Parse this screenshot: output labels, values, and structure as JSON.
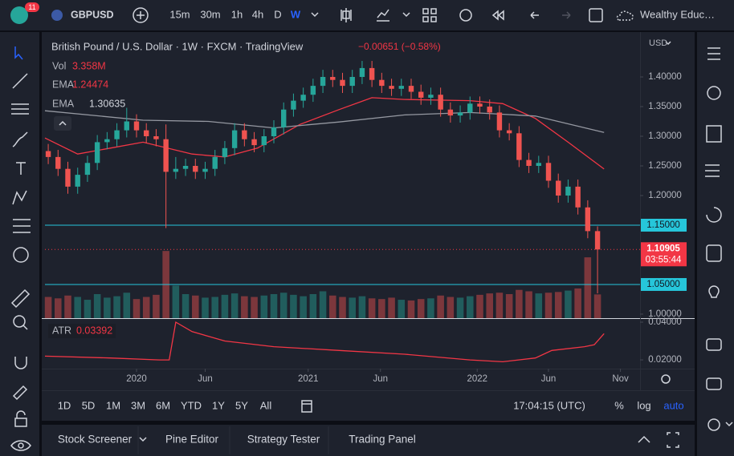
{
  "toolbar": {
    "badge": "11",
    "symbol": "GBPUSD",
    "intervals": [
      "15m",
      "30m",
      "1h",
      "4h",
      "D",
      "W"
    ],
    "account": "Wealthy Educ…"
  },
  "chart_data": {
    "type": "candlestick",
    "title": "British Pound / U.S. Dollar · 1W · FXCM · TradingView",
    "change": "−0.00651 (−0.58%)",
    "currency": "USD",
    "countdown": "03:55:44",
    "up_color": "#26a69a",
    "down_color": "#ef5350",
    "grid": false,
    "xlim": [
      0,
      182
    ],
    "ylim": [
      0.9932,
      1.4703
    ],
    "yticks": [
      {
        "value": 1.4,
        "label": "1.40000"
      },
      {
        "value": 1.35,
        "label": "1.35000"
      },
      {
        "value": 1.3,
        "label": "1.30000"
      },
      {
        "value": 1.25,
        "label": "1.25000"
      },
      {
        "value": 1.2,
        "label": "1.20000"
      },
      {
        "value": 1.0,
        "label": "1.00000"
      }
    ],
    "xticks": [
      {
        "value": 28,
        "label": "2020"
      },
      {
        "value": 49,
        "label": "Jun"
      },
      {
        "value": 80.5,
        "label": "2021"
      },
      {
        "value": 102.6,
        "label": "Jun"
      },
      {
        "value": 132.2,
        "label": "2022"
      },
      {
        "value": 154,
        "label": "Jun"
      },
      {
        "value": 176,
        "label": "Nov"
      }
    ],
    "hlines": [
      {
        "value": 1.15,
        "label": "1.15000"
      },
      {
        "value": 1.05,
        "label": "1.05000"
      }
    ],
    "hline_color": "#26c6da",
    "x": [
      1,
      4,
      7,
      10,
      13,
      16,
      19,
      22,
      25,
      28,
      31,
      34,
      37,
      40,
      43,
      46,
      49,
      52,
      55,
      58,
      61,
      64,
      67,
      70,
      73,
      76,
      79,
      82,
      85,
      88,
      91,
      94,
      97,
      100,
      103,
      106,
      109,
      112,
      115,
      118,
      121,
      124,
      127,
      130,
      133,
      136,
      139,
      142,
      145,
      148,
      151,
      154,
      157,
      160,
      163,
      166,
      169
    ],
    "candles": [
      [
        1.275,
        1.287,
        1.253,
        1.265
      ],
      [
        1.265,
        1.277,
        1.233,
        1.245
      ],
      [
        1.245,
        1.257,
        1.203,
        1.215
      ],
      [
        1.215,
        1.247,
        1.203,
        1.235
      ],
      [
        1.235,
        1.267,
        1.223,
        1.255
      ],
      [
        1.255,
        1.302,
        1.243,
        1.29
      ],
      [
        1.29,
        1.307,
        1.278,
        1.295
      ],
      [
        1.295,
        1.322,
        1.283,
        1.31
      ],
      [
        1.31,
        1.348,
        1.298,
        1.325
      ],
      [
        1.325,
        1.337,
        1.298,
        1.31
      ],
      [
        1.31,
        1.322,
        1.288,
        1.3
      ],
      [
        1.3,
        1.312,
        1.283,
        1.295
      ],
      [
        1.295,
        1.32,
        1.145,
        1.24
      ],
      [
        1.24,
        1.265,
        1.228,
        1.245
      ],
      [
        1.245,
        1.262,
        1.233,
        1.25
      ],
      [
        1.25,
        1.262,
        1.228,
        1.24
      ],
      [
        1.24,
        1.257,
        1.228,
        1.245
      ],
      [
        1.245,
        1.277,
        1.233,
        1.265
      ],
      [
        1.265,
        1.292,
        1.253,
        1.28
      ],
      [
        1.28,
        1.322,
        1.268,
        1.31
      ],
      [
        1.31,
        1.322,
        1.283,
        1.295
      ],
      [
        1.295,
        1.307,
        1.273,
        1.285
      ],
      [
        1.285,
        1.312,
        1.273,
        1.3
      ],
      [
        1.3,
        1.327,
        1.288,
        1.315
      ],
      [
        1.315,
        1.357,
        1.303,
        1.345
      ],
      [
        1.345,
        1.372,
        1.333,
        1.36
      ],
      [
        1.36,
        1.382,
        1.348,
        1.37
      ],
      [
        1.37,
        1.397,
        1.358,
        1.385
      ],
      [
        1.385,
        1.412,
        1.373,
        1.4
      ],
      [
        1.4,
        1.412,
        1.383,
        1.395
      ],
      [
        1.395,
        1.407,
        1.373,
        1.385
      ],
      [
        1.385,
        1.412,
        1.373,
        1.4
      ],
      [
        1.4,
        1.427,
        1.388,
        1.415
      ],
      [
        1.415,
        1.427,
        1.383,
        1.395
      ],
      [
        1.395,
        1.407,
        1.373,
        1.385
      ],
      [
        1.385,
        1.397,
        1.368,
        1.38
      ],
      [
        1.38,
        1.397,
        1.368,
        1.385
      ],
      [
        1.385,
        1.397,
        1.363,
        1.375
      ],
      [
        1.375,
        1.387,
        1.353,
        1.365
      ],
      [
        1.365,
        1.382,
        1.353,
        1.37
      ],
      [
        1.37,
        1.382,
        1.333,
        1.345
      ],
      [
        1.345,
        1.357,
        1.323,
        1.335
      ],
      [
        1.335,
        1.352,
        1.323,
        1.34
      ],
      [
        1.34,
        1.367,
        1.328,
        1.355
      ],
      [
        1.355,
        1.367,
        1.338,
        1.35
      ],
      [
        1.35,
        1.362,
        1.328,
        1.34
      ],
      [
        1.34,
        1.352,
        1.298,
        1.31
      ],
      [
        1.31,
        1.322,
        1.293,
        1.305
      ],
      [
        1.305,
        1.317,
        1.248,
        1.26
      ],
      [
        1.26,
        1.272,
        1.238,
        1.25
      ],
      [
        1.25,
        1.267,
        1.238,
        1.255
      ],
      [
        1.255,
        1.267,
        1.213,
        1.225
      ],
      [
        1.225,
        1.237,
        1.188,
        1.2
      ],
      [
        1.2,
        1.227,
        1.188,
        1.215
      ],
      [
        1.215,
        1.227,
        1.168,
        1.18
      ],
      [
        1.18,
        1.192,
        1.128,
        1.14
      ],
      [
        1.14,
        1.148,
        1.035,
        1.10905
      ]
    ],
    "volume": {
      "name": "Vol",
      "last_label": "3.358M",
      "lim": [
        0,
        40
      ],
      "values": [
        3.0,
        2.8,
        3.2,
        3.0,
        2.6,
        3.4,
        2.9,
        3.1,
        3.6,
        2.7,
        3.0,
        3.3,
        9.5,
        4.6,
        3.4,
        3.2,
        2.9,
        3.0,
        3.3,
        3.5,
        3.1,
        3.0,
        3.2,
        3.4,
        3.6,
        3.3,
        3.1,
        3.4,
        3.8,
        3.2,
        3.0,
        2.9,
        3.1,
        2.8,
        2.7,
        2.9,
        2.6,
        2.5,
        2.7,
        2.8,
        3.2,
        3.0,
        2.9,
        3.1,
        3.3,
        3.5,
        3.6,
        3.4,
        4.0,
        3.8,
        3.5,
        3.6,
        3.7,
        3.9,
        4.2,
        8.6,
        3.358
      ]
    },
    "series": [
      {
        "name": "EMA",
        "color": "#f23645",
        "x": [
          0,
          10,
          20,
          30,
          45,
          55,
          65,
          78,
          90,
          100,
          110,
          130,
          140,
          150,
          160,
          171
        ],
        "values": [
          1.297,
          1.27,
          1.28,
          1.29,
          1.27,
          1.265,
          1.28,
          1.32,
          1.345,
          1.365,
          1.362,
          1.36,
          1.355,
          1.33,
          1.29,
          1.24474
        ]
      },
      {
        "name": "EMA",
        "color": "#9598a1",
        "x": [
          0,
          30,
          50,
          70,
          90,
          110,
          130,
          150,
          171
        ],
        "values": [
          1.343,
          1.327,
          1.325,
          1.314,
          1.324,
          1.336,
          1.34,
          1.334,
          1.30635
        ]
      }
    ],
    "atr": {
      "name": "ATR",
      "color": "#f23645",
      "ylim": [
        0.01536,
        0.0417
      ],
      "yticks": [
        {
          "value": 0.04,
          "label": "0.04000"
        },
        {
          "value": 0.02,
          "label": "0.02000"
        }
      ],
      "x": [
        0,
        20,
        35,
        38,
        40,
        45,
        55,
        70,
        90,
        110,
        130,
        140,
        150,
        155,
        165,
        168,
        171
      ],
      "values": [
        0.022,
        0.021,
        0.02,
        0.02,
        0.04,
        0.035,
        0.03,
        0.027,
        0.025,
        0.023,
        0.02,
        0.019,
        0.021,
        0.025,
        0.027,
        0.028,
        0.03392
      ]
    }
  },
  "range_bar": {
    "ranges": [
      "1D",
      "5D",
      "1M",
      "3M",
      "6M",
      "YTD",
      "1Y",
      "5Y",
      "All"
    ],
    "clock": "17:04:15 (UTC)",
    "options": [
      "%",
      "log",
      "auto"
    ]
  },
  "tabs": [
    "Stock Screener",
    "Pine Editor",
    "Strategy Tester",
    "Trading Panel"
  ]
}
